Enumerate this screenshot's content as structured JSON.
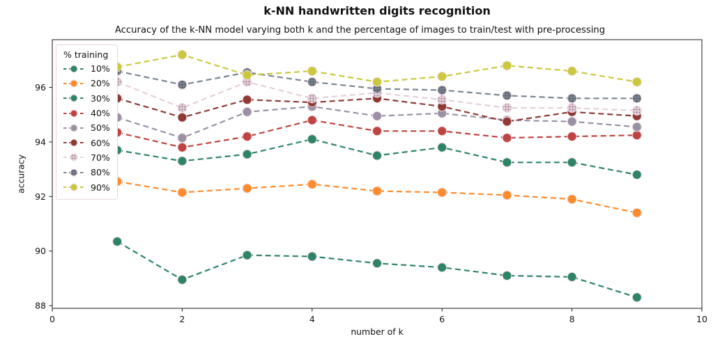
{
  "title": "k-NN handwritten digits recognition",
  "subtitle": "Accuracy of the k-NN model varying both k and the percentage of images to train/test with pre-processing",
  "colors": {
    "marker_edge": "#f2dee4",
    "axis": "#1a1a1a",
    "tick_text": "#111111",
    "legend_border": "#efd5dc",
    "background": "#ffffff"
  },
  "chart_data": {
    "type": "line",
    "title": "k-NN handwritten digits recognition",
    "subtitle": "Accuracy of the k-NN model varying both k and the percentage of images to train/test with pre-processing",
    "xlabel": "number of k",
    "ylabel": "accuracy",
    "xlim": [
      0,
      10
    ],
    "ylim": [
      87.9,
      97.75
    ],
    "x_ticks": [
      0,
      2,
      4,
      6,
      8,
      10
    ],
    "y_ticks": [
      88,
      90,
      92,
      94,
      96
    ],
    "grid": false,
    "line_style": "dashed",
    "legend_title": "% training",
    "legend_position": "upper left",
    "x": [
      1,
      2,
      3,
      4,
      5,
      6,
      7,
      8,
      9
    ],
    "series": [
      {
        "name": "10%",
        "color": "#2e8467",
        "texture": "solid",
        "values": [
          90.35,
          88.95,
          89.85,
          89.8,
          89.55,
          89.4,
          89.1,
          89.05,
          88.3
        ]
      },
      {
        "name": "20%",
        "color": "#ff8b2d",
        "texture": "solid",
        "values": [
          92.55,
          92.15,
          92.3,
          92.45,
          92.2,
          92.15,
          92.05,
          91.9,
          91.4
        ]
      },
      {
        "name": "30%",
        "color": "#2e8467",
        "texture": "solid",
        "values": [
          93.7,
          93.3,
          93.55,
          94.1,
          93.5,
          93.8,
          93.25,
          93.25,
          92.8
        ]
      },
      {
        "name": "40%",
        "color": "#bf4340",
        "texture": "solid",
        "values": [
          94.35,
          93.8,
          94.2,
          94.8,
          94.4,
          94.4,
          94.15,
          94.2,
          94.25
        ]
      },
      {
        "name": "50%",
        "color": "#9a91a5",
        "texture": "solid",
        "values": [
          94.9,
          94.15,
          95.1,
          95.3,
          94.95,
          95.05,
          94.8,
          94.75,
          94.55
        ]
      },
      {
        "name": "60%",
        "color": "#8f3a35",
        "texture": "solid",
        "values": [
          95.6,
          94.9,
          95.55,
          95.45,
          95.6,
          95.3,
          94.75,
          95.1,
          94.95
        ]
      },
      {
        "name": "70%",
        "color": "#e6cfdb",
        "texture": "dotted",
        "values": [
          96.2,
          95.25,
          96.2,
          95.6,
          95.8,
          95.55,
          95.25,
          95.25,
          95.15
        ]
      },
      {
        "name": "80%",
        "color": "#7a8591",
        "texture": "dotted",
        "values": [
          96.6,
          96.1,
          96.55,
          96.2,
          95.95,
          95.9,
          95.7,
          95.6,
          95.6
        ]
      },
      {
        "name": "90%",
        "color": "#cbc83e",
        "texture": "solid",
        "values": [
          96.75,
          97.2,
          96.45,
          96.6,
          96.2,
          96.4,
          96.8,
          96.6,
          96.2
        ]
      }
    ]
  }
}
